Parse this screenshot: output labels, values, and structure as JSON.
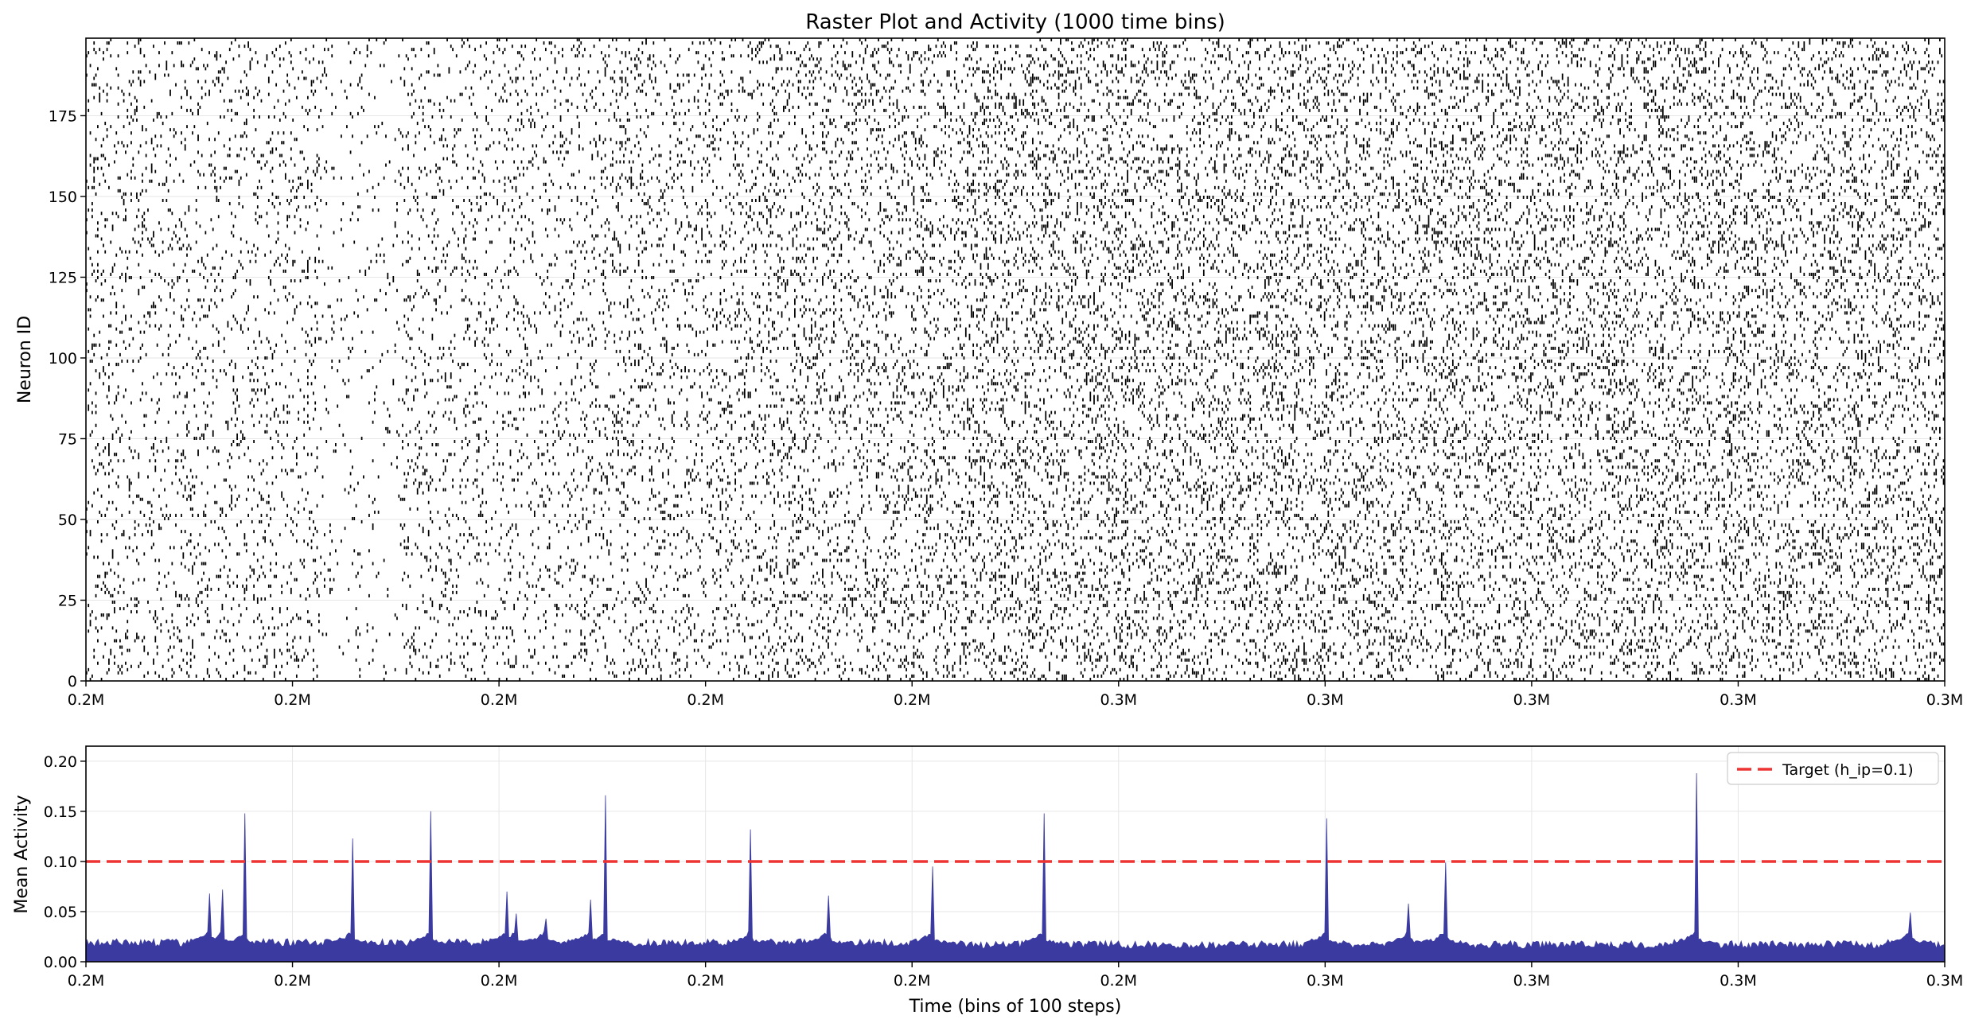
{
  "chart_data": [
    {
      "type": "raster",
      "title": "Raster Plot and Activity (1000 time bins)",
      "xlabel": "",
      "ylabel": "Neuron ID",
      "n_neurons": 200,
      "n_time_bins": 1000,
      "ylim": [
        0,
        199
      ],
      "y_ticks": [
        0,
        25,
        50,
        75,
        100,
        125,
        150,
        175
      ],
      "x_tick_labels": [
        "0.2M",
        "0.2M",
        "0.2M",
        "0.2M",
        "0.2M",
        "0.3M",
        "0.3M",
        "0.3M",
        "0.3M",
        "0.3M"
      ],
      "spike_color": "#000000"
    },
    {
      "type": "area",
      "xlabel": "Time (bins of 100 steps)",
      "ylabel": "Mean Activity",
      "ylim": [
        0,
        0.215
      ],
      "y_ticks": [
        "0.00",
        "0.05",
        "0.10",
        "0.15",
        "0.20"
      ],
      "x_tick_labels": [
        "0.2M",
        "0.2M",
        "0.2M",
        "0.2M",
        "0.2M",
        "0.2M",
        "0.3M",
        "0.3M",
        "0.3M",
        "0.3M"
      ],
      "fill_color": "#3a3aa0",
      "baseline_activity": 0.017,
      "peaks": [
        {
          "bin": 66,
          "value": 0.068
        },
        {
          "bin": 73,
          "value": 0.072
        },
        {
          "bin": 85,
          "value": 0.148
        },
        {
          "bin": 143,
          "value": 0.123
        },
        {
          "bin": 185,
          "value": 0.15
        },
        {
          "bin": 226,
          "value": 0.07
        },
        {
          "bin": 231,
          "value": 0.048
        },
        {
          "bin": 247,
          "value": 0.043
        },
        {
          "bin": 271,
          "value": 0.062
        },
        {
          "bin": 279,
          "value": 0.166
        },
        {
          "bin": 357,
          "value": 0.132
        },
        {
          "bin": 399,
          "value": 0.066
        },
        {
          "bin": 455,
          "value": 0.095
        },
        {
          "bin": 515,
          "value": 0.148
        },
        {
          "bin": 667,
          "value": 0.143
        },
        {
          "bin": 711,
          "value": 0.058
        },
        {
          "bin": 731,
          "value": 0.099
        },
        {
          "bin": 866,
          "value": 0.188
        },
        {
          "bin": 981,
          "value": 0.049
        }
      ],
      "reference_line": {
        "value": 0.1,
        "label": "Target (h_ip=0.1)",
        "color": "#ee3333"
      },
      "legend_position": "top-right"
    }
  ]
}
